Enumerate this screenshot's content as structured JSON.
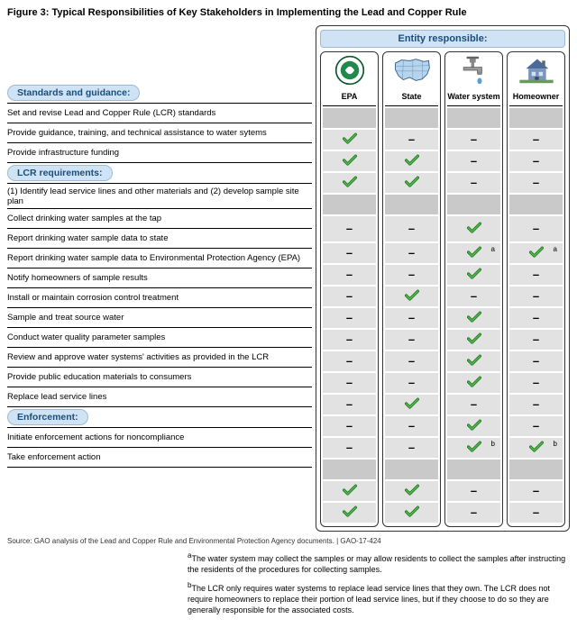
{
  "figure_title": "Figure 3: Typical Responsibilities of Key Stakeholders in Implementing the Lead and Copper Rule",
  "responsible_header": "Entity responsible:",
  "entities": [
    {
      "id": "epa",
      "label": "EPA"
    },
    {
      "id": "state",
      "label": "State"
    },
    {
      "id": "water",
      "label": "Water system"
    },
    {
      "id": "home",
      "label": "Homeowner"
    }
  ],
  "sections": [
    {
      "title": "Standards and guidance:",
      "rows": [
        {
          "label": "Set and revise Lead and Copper Rule (LCR) standards",
          "vals": [
            "check",
            "dash",
            "dash",
            "dash"
          ]
        },
        {
          "label": "Provide guidance, training, and technical assistance to water sytems",
          "vals": [
            "check",
            "check",
            "dash",
            "dash"
          ]
        },
        {
          "label": "Provide infrastructure funding",
          "vals": [
            "check",
            "check",
            "dash",
            "dash"
          ]
        }
      ]
    },
    {
      "title": "LCR requirements:",
      "rows": [
        {
          "label": "(1) Identify lead service lines and other materials and (2) develop sample site plan",
          "tall": true,
          "vals": [
            "dash",
            "dash",
            "check",
            "dash"
          ]
        },
        {
          "label": "Collect drinking water samples at the tap",
          "vals": [
            "dash",
            "dash",
            "check",
            "check"
          ],
          "sups": [
            "",
            "",
            "a",
            "a"
          ]
        },
        {
          "label": "Report drinking water sample data to state",
          "vals": [
            "dash",
            "dash",
            "check",
            "dash"
          ]
        },
        {
          "label": "Report drinking water sample data to Environmental Protection Agency (EPA)",
          "vals": [
            "dash",
            "check",
            "dash",
            "dash"
          ]
        },
        {
          "label": "Notify homeowners of sample results",
          "vals": [
            "dash",
            "dash",
            "check",
            "dash"
          ]
        },
        {
          "label": "Install or maintain corrosion control treatment",
          "vals": [
            "dash",
            "dash",
            "check",
            "dash"
          ]
        },
        {
          "label": "Sample and treat source water",
          "vals": [
            "dash",
            "dash",
            "check",
            "dash"
          ]
        },
        {
          "label": "Conduct water quality parameter samples",
          "vals": [
            "dash",
            "dash",
            "check",
            "dash"
          ]
        },
        {
          "label": "Review and approve water systems' activities as provided in the LCR",
          "vals": [
            "dash",
            "check",
            "dash",
            "dash"
          ]
        },
        {
          "label": "Provide public education materials to consumers",
          "vals": [
            "dash",
            "dash",
            "check",
            "dash"
          ]
        },
        {
          "label": "Replace lead service lines",
          "vals": [
            "dash",
            "dash",
            "check",
            "check"
          ],
          "sups": [
            "",
            "",
            "b",
            "b"
          ]
        }
      ]
    },
    {
      "title": "Enforcement:",
      "rows": [
        {
          "label": "Initiate enforcement actions for noncompliance",
          "vals": [
            "check",
            "check",
            "dash",
            "dash"
          ]
        },
        {
          "label": "Take enforcement action",
          "vals": [
            "check",
            "check",
            "dash",
            "dash"
          ]
        }
      ]
    }
  ],
  "source_line": "Source: GAO analysis of the Lead and Copper Rule and Environmental Protection Agency documents.  |  GAO-17-424",
  "footnotes": {
    "a": "The water system may collect the samples or may allow residents to collect the samples after instructing the residents of the procedures for collecting samples.",
    "b": "The LCR only requires water systems to replace lead service lines that they own. The LCR does not require homeowners to replace their portion of lead service lines, but if they choose to do so they are generally responsible for the associated costs."
  },
  "colors": {
    "check_fill": "#4fb84a",
    "check_stroke": "#1a6b1a",
    "pill_bg": "#cfe3f4",
    "cell_bg": "#e2e2e2"
  }
}
